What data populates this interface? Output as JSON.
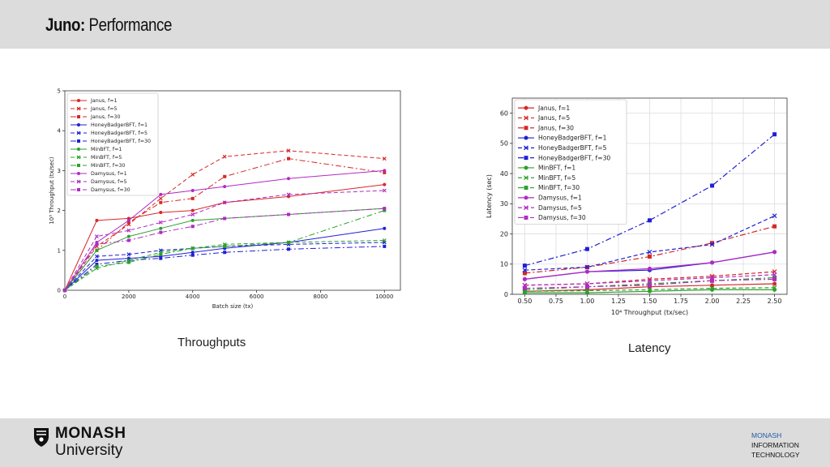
{
  "slide": {
    "title_bold": "Juno:",
    "title_rest": " Performance"
  },
  "captions": {
    "throughput": "Throughputs",
    "latency": "Latency"
  },
  "footer": {
    "logo_name": "MONASH",
    "logo_sub": "University",
    "faculty_line1": "MONASH",
    "faculty_line2": "INFORMATION",
    "faculty_line3": "TECHNOLOGY"
  },
  "colors": {
    "header_bg": "#dcdcdc",
    "footer_bg": "#dcdcdc",
    "accent": "#1f5aa6"
  },
  "chart_data": [
    {
      "type": "line",
      "xlabel": "Batch size (tx)",
      "ylabel": "10³ Throughput (tx/sec)",
      "xlim": [
        0,
        10500
      ],
      "ylim": [
        0,
        5
      ],
      "xticks": [
        0,
        2000,
        4000,
        6000,
        8000,
        10000
      ],
      "yticks": [
        0,
        1,
        2,
        3,
        4,
        5
      ],
      "legend_position": "top-left",
      "grid": false,
      "x": [
        0,
        1000,
        2000,
        3000,
        4000,
        5000,
        7000,
        10000
      ],
      "series": [
        {
          "name": "Janus, f=1",
          "color": "#d62728",
          "dash": "solid",
          "marker": "circle",
          "values": [
            0,
            1.75,
            1.8,
            1.95,
            2.0,
            2.2,
            2.35,
            2.65
          ]
        },
        {
          "name": "Janus, f=5",
          "color": "#d62728",
          "dash": "dash",
          "marker": "x",
          "values": [
            0,
            1.1,
            1.65,
            2.3,
            2.9,
            3.35,
            3.5,
            3.3
          ]
        },
        {
          "name": "Janus, f=30",
          "color": "#d62728",
          "dash": "dashdot",
          "marker": "square",
          "values": [
            0,
            1.0,
            1.7,
            2.2,
            2.3,
            2.85,
            3.3,
            2.95
          ]
        },
        {
          "name": "HoneyBadgerBFT, f=1",
          "color": "#1f1fd6",
          "dash": "solid",
          "marker": "circle",
          "values": [
            0,
            0.75,
            0.8,
            0.85,
            0.95,
            1.05,
            1.2,
            1.55
          ]
        },
        {
          "name": "HoneyBadgerBFT, f=5",
          "color": "#1f1fd6",
          "dash": "dash",
          "marker": "x",
          "values": [
            0,
            0.85,
            0.9,
            1.0,
            1.05,
            1.1,
            1.15,
            1.2
          ]
        },
        {
          "name": "HoneyBadgerBFT, f=30",
          "color": "#1f1fd6",
          "dash": "dashdot",
          "marker": "square",
          "values": [
            0,
            0.65,
            0.75,
            0.8,
            0.88,
            0.95,
            1.03,
            1.1
          ]
        },
        {
          "name": "MinBFT, f=1",
          "color": "#2ca02c",
          "dash": "solid",
          "marker": "circle",
          "values": [
            0,
            1.0,
            1.35,
            1.55,
            1.75,
            1.8,
            1.9,
            2.05
          ]
        },
        {
          "name": "MinBFT, f=5",
          "color": "#2ca02c",
          "dash": "dash",
          "marker": "x",
          "values": [
            0,
            0.55,
            0.75,
            0.95,
            1.05,
            1.15,
            1.2,
            1.25
          ]
        },
        {
          "name": "MinBFT, f=30",
          "color": "#2ca02c",
          "dash": "dashdot",
          "marker": "square",
          "values": [
            0,
            0.6,
            0.7,
            0.9,
            1.05,
            1.1,
            1.2,
            2.0
          ]
        },
        {
          "name": "Damysus, f=1",
          "color": "#b02bc2",
          "dash": "solid",
          "marker": "circle",
          "values": [
            0,
            1.2,
            1.75,
            2.4,
            2.5,
            2.6,
            2.8,
            3.0
          ]
        },
        {
          "name": "Damysus, f=5",
          "color": "#b02bc2",
          "dash": "dash",
          "marker": "x",
          "values": [
            0,
            1.35,
            1.5,
            1.7,
            1.9,
            2.2,
            2.4,
            2.5
          ]
        },
        {
          "name": "Damysus, f=30",
          "color": "#b02bc2",
          "dash": "dashdot",
          "marker": "square",
          "values": [
            0,
            1.15,
            1.25,
            1.45,
            1.6,
            1.8,
            1.9,
            2.05
          ]
        }
      ]
    },
    {
      "type": "line",
      "xlabel": "10⁴ Throughput (tx/sec)",
      "ylabel": "Latency (sec)",
      "xlim": [
        0.4,
        2.6
      ],
      "ylim": [
        0,
        65
      ],
      "xticks": [
        0.5,
        0.75,
        1.0,
        1.25,
        1.5,
        1.75,
        2.0,
        2.25,
        2.5
      ],
      "xtick_labels": [
        "0.50",
        "0.75",
        "1.00",
        "1.25",
        "1.50",
        "1.75",
        "2.00",
        "2.25",
        "2.50"
      ],
      "yticks": [
        0,
        10,
        20,
        30,
        40,
        50,
        60
      ],
      "legend_position": "top-left",
      "grid": true,
      "x": [
        0.5,
        1.0,
        1.5,
        2.0,
        2.5
      ],
      "series": [
        {
          "name": "Janus, f=1",
          "color": "#d62728",
          "dash": "solid",
          "marker": "circle",
          "values": [
            1.0,
            1.5,
            2.5,
            3.0,
            3.5
          ]
        },
        {
          "name": "Janus, f=5",
          "color": "#d62728",
          "dash": "dash",
          "marker": "x",
          "values": [
            3.0,
            3.5,
            5.0,
            6.0,
            7.5
          ]
        },
        {
          "name": "Janus, f=30",
          "color": "#d62728",
          "dash": "dashdot",
          "marker": "square",
          "values": [
            7.0,
            9.0,
            12.5,
            17.0,
            22.5
          ]
        },
        {
          "name": "HoneyBadgerBFT, f=1",
          "color": "#1f1fd6",
          "dash": "solid",
          "marker": "circle",
          "values": [
            5.0,
            7.5,
            8.0,
            10.5,
            14.0
          ]
        },
        {
          "name": "HoneyBadgerBFT, f=5",
          "color": "#1f1fd6",
          "dash": "dash",
          "marker": "x",
          "values": [
            8.0,
            9.0,
            14.0,
            16.5,
            26.0
          ]
        },
        {
          "name": "HoneyBadgerBFT, f=30",
          "color": "#1f1fd6",
          "dash": "dashdot",
          "marker": "square",
          "values": [
            9.5,
            15.0,
            24.5,
            36.0,
            53.0
          ]
        },
        {
          "name": "MinBFT, f=1",
          "color": "#2ca02c",
          "dash": "solid",
          "marker": "circle",
          "values": [
            0.5,
            0.5,
            1.0,
            1.5,
            1.5
          ]
        },
        {
          "name": "MinBFT, f=5",
          "color": "#2ca02c",
          "dash": "dash",
          "marker": "x",
          "values": [
            1.0,
            1.2,
            1.5,
            2.0,
            2.2
          ]
        },
        {
          "name": "MinBFT, f=30",
          "color": "#2ca02c",
          "dash": "dashdot",
          "marker": "square",
          "values": [
            1.5,
            2.5,
            3.5,
            4.5,
            5.5
          ]
        },
        {
          "name": "Damysus, f=1",
          "color": "#b02bc2",
          "dash": "solid",
          "marker": "circle",
          "values": [
            5.0,
            7.5,
            8.5,
            10.5,
            14.0
          ]
        },
        {
          "name": "Damysus, f=5",
          "color": "#b02bc2",
          "dash": "dash",
          "marker": "x",
          "values": [
            3.0,
            3.5,
            4.5,
            5.5,
            6.5
          ]
        },
        {
          "name": "Damysus, f=30",
          "color": "#b02bc2",
          "dash": "dashdot",
          "marker": "square",
          "values": [
            2.0,
            2.5,
            3.0,
            4.5,
            5.0
          ]
        }
      ]
    }
  ]
}
